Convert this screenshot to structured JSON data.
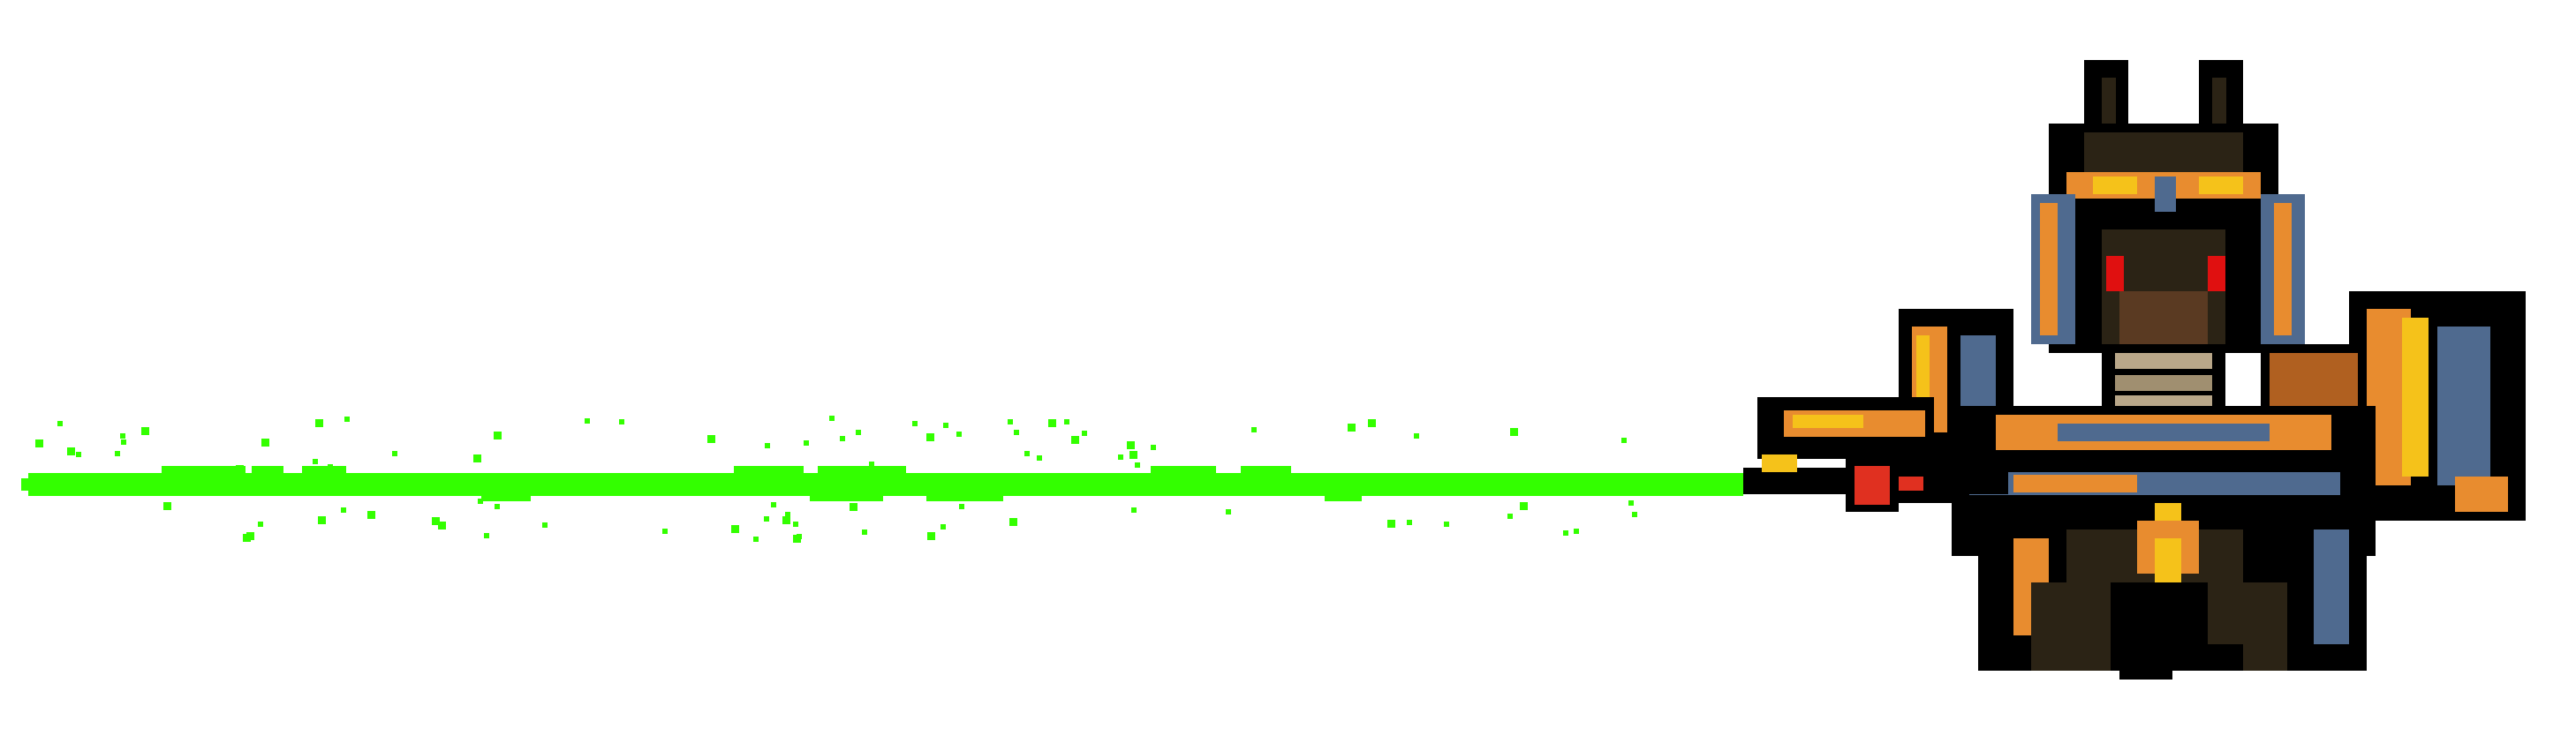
{
  "scene": {
    "background_color": "#ffffff",
    "character": {
      "name": "anubis-warrior",
      "palette": {
        "outline": "#000000",
        "gold": "#e88c2f",
        "gold_light": "#f5c21a",
        "steel": "#4f6a8f",
        "dark": "#2b2315",
        "brown": "#5a3a22",
        "eye": "#e01010",
        "bandage": "#b9a789",
        "gem": "#e03020"
      }
    },
    "beam": {
      "color": "#33ff00",
      "particle_color": "#33ff00"
    }
  }
}
